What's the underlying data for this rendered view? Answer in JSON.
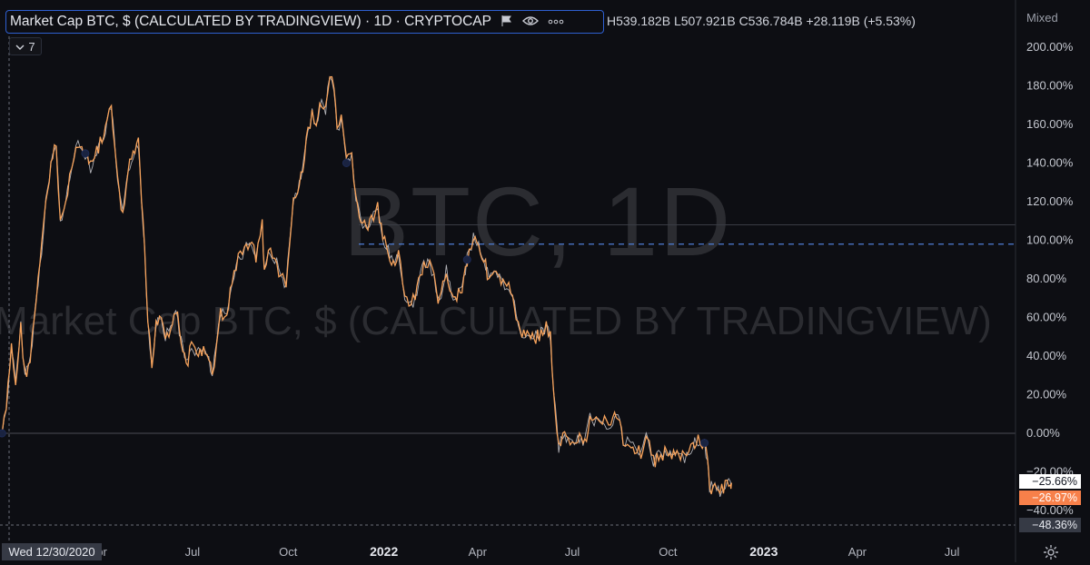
{
  "window": {
    "title": "Market Cap BTC, $ (CALCULATED BY TRADINGVIEW) · 1D · CRYPTOCAP",
    "ohlc": "H539.182B  L507.921B  C536.784B  +28.119B (+5.53%)",
    "indicators_count": "7",
    "scale_mode": "Mixed",
    "crosshair_date": "Wed 12/30/2020"
  },
  "watermark": {
    "symbol": "BTC, 1D",
    "name": "Market Cap BTC, $ (CALCULATED BY TRADINGVIEW)"
  },
  "price_tags": {
    "tag_white": "−25.66%",
    "tag_orange": "−26.97%",
    "tag_gray": "−48.36%"
  },
  "colors": {
    "background": "#0d0e13",
    "line": "#f7a35c",
    "white_overlay": "#e8e8ee",
    "dashed_level": "#4f7fd8",
    "focus_border": "#2e5fd0"
  },
  "icons": [
    "chevron-down-icon",
    "flag-icon",
    "eye-icon",
    "more-icon",
    "gear-icon"
  ],
  "chart_data": {
    "type": "line",
    "title": "Market Cap BTC, $ (CALCULATED BY TRADINGVIEW)",
    "xlabel": "",
    "ylabel": "",
    "ylim": [
      -48.36,
      205
    ],
    "y_ticks": [
      -40,
      -20,
      0,
      20,
      40,
      60,
      80,
      100,
      120,
      140,
      160,
      180,
      200
    ],
    "y_tick_labels": [
      "−40.00%",
      "−20.00%",
      "0.00%",
      "20.00%",
      "40.00%",
      "60.00%",
      "80.00%",
      "100.00%",
      "120.00%",
      "140.00%",
      "160.00%",
      "180.00%",
      "200.00%"
    ],
    "x_ticks": [
      {
        "date": "2021-04-01",
        "label": "Apr",
        "bold": false
      },
      {
        "date": "2021-07-01",
        "label": "Jul",
        "bold": false
      },
      {
        "date": "2021-10-01",
        "label": "Oct",
        "bold": false
      },
      {
        "date": "2022-01-01",
        "label": "2022",
        "bold": true
      },
      {
        "date": "2022-04-01",
        "label": "Apr",
        "bold": false
      },
      {
        "date": "2022-07-01",
        "label": "Jul",
        "bold": false
      },
      {
        "date": "2022-10-01",
        "label": "Oct",
        "bold": false
      },
      {
        "date": "2023-01-01",
        "label": "2023",
        "bold": true
      },
      {
        "date": "2023-04-01",
        "label": "Apr",
        "bold": false
      },
      {
        "date": "2023-07-01",
        "label": "Jul",
        "bold": false
      }
    ],
    "x_range": [
      "2020-12-28",
      "2023-08-31"
    ],
    "dashed_level": 98,
    "solid_level": 108,
    "zero_level": 0,
    "series": [
      {
        "color": "#f7a35c",
        "points": [
          [
            "2020-12-30",
            0
          ],
          [
            "2021-01-03",
            12
          ],
          [
            "2021-01-08",
            45
          ],
          [
            "2021-01-12",
            25
          ],
          [
            "2021-01-17",
            55
          ],
          [
            "2021-01-21",
            30
          ],
          [
            "2021-01-26",
            38
          ],
          [
            "2021-02-01",
            70
          ],
          [
            "2021-02-06",
            95
          ],
          [
            "2021-02-10",
            120
          ],
          [
            "2021-02-15",
            138
          ],
          [
            "2021-02-20",
            150
          ],
          [
            "2021-02-24",
            110
          ],
          [
            "2021-03-01",
            118
          ],
          [
            "2021-03-07",
            140
          ],
          [
            "2021-03-11",
            150
          ],
          [
            "2021-03-15",
            147
          ],
          [
            "2021-03-20",
            145
          ],
          [
            "2021-03-25",
            138
          ],
          [
            "2021-03-31",
            146
          ],
          [
            "2021-04-05",
            152
          ],
          [
            "2021-04-10",
            160
          ],
          [
            "2021-04-14",
            170
          ],
          [
            "2021-04-17",
            150
          ],
          [
            "2021-04-20",
            130
          ],
          [
            "2021-04-25",
            112
          ],
          [
            "2021-04-30",
            135
          ],
          [
            "2021-05-05",
            145
          ],
          [
            "2021-05-10",
            150
          ],
          [
            "2021-05-13",
            118
          ],
          [
            "2021-05-16",
            96
          ],
          [
            "2021-05-19",
            58
          ],
          [
            "2021-05-23",
            35
          ],
          [
            "2021-05-27",
            58
          ],
          [
            "2021-06-01",
            62
          ],
          [
            "2021-06-05",
            50
          ],
          [
            "2021-06-10",
            55
          ],
          [
            "2021-06-15",
            65
          ],
          [
            "2021-06-20",
            48
          ],
          [
            "2021-06-25",
            35
          ],
          [
            "2021-06-30",
            45
          ],
          [
            "2021-07-05",
            42
          ],
          [
            "2021-07-10",
            43
          ],
          [
            "2021-07-15",
            40
          ],
          [
            "2021-07-20",
            30
          ],
          [
            "2021-07-24",
            45
          ],
          [
            "2021-07-28",
            62
          ],
          [
            "2021-08-03",
            60
          ],
          [
            "2021-08-08",
            80
          ],
          [
            "2021-08-14",
            90
          ],
          [
            "2021-08-20",
            95
          ],
          [
            "2021-08-25",
            100
          ],
          [
            "2021-08-31",
            92
          ],
          [
            "2021-09-06",
            108
          ],
          [
            "2021-09-08",
            85
          ],
          [
            "2021-09-14",
            95
          ],
          [
            "2021-09-20",
            88
          ],
          [
            "2021-09-24",
            80
          ],
          [
            "2021-09-29",
            78
          ],
          [
            "2021-10-02",
            95
          ],
          [
            "2021-10-06",
            120
          ],
          [
            "2021-10-10",
            125
          ],
          [
            "2021-10-15",
            135
          ],
          [
            "2021-10-20",
            158
          ],
          [
            "2021-10-24",
            165
          ],
          [
            "2021-10-28",
            162
          ],
          [
            "2021-11-02",
            170
          ],
          [
            "2021-11-06",
            168
          ],
          [
            "2021-11-10",
            186
          ],
          [
            "2021-11-14",
            176
          ],
          [
            "2021-11-17",
            158
          ],
          [
            "2021-11-21",
            162
          ],
          [
            "2021-11-26",
            140
          ],
          [
            "2021-12-01",
            145
          ],
          [
            "2021-12-05",
            122
          ],
          [
            "2021-12-10",
            110
          ],
          [
            "2021-12-15",
            106
          ],
          [
            "2021-12-20",
            110
          ],
          [
            "2021-12-26",
            116
          ],
          [
            "2021-12-31",
            100
          ],
          [
            "2022-01-05",
            95
          ],
          [
            "2022-01-10",
            88
          ],
          [
            "2022-01-15",
            94
          ],
          [
            "2022-01-21",
            70
          ],
          [
            "2022-01-25",
            65
          ],
          [
            "2022-01-31",
            70
          ],
          [
            "2022-02-05",
            83
          ],
          [
            "2022-02-10",
            88
          ],
          [
            "2022-02-16",
            85
          ],
          [
            "2022-02-22",
            68
          ],
          [
            "2022-02-25",
            70
          ],
          [
            "2022-03-02",
            86
          ],
          [
            "2022-03-07",
            70
          ],
          [
            "2022-03-12",
            72
          ],
          [
            "2022-03-17",
            75
          ],
          [
            "2022-03-22",
            90
          ],
          [
            "2022-03-28",
            102
          ],
          [
            "2022-04-02",
            98
          ],
          [
            "2022-04-07",
            90
          ],
          [
            "2022-04-12",
            80
          ],
          [
            "2022-04-17",
            82
          ],
          [
            "2022-04-22",
            80
          ],
          [
            "2022-04-27",
            75
          ],
          [
            "2022-05-03",
            75
          ],
          [
            "2022-05-08",
            62
          ],
          [
            "2022-05-12",
            50
          ],
          [
            "2022-05-17",
            52
          ],
          [
            "2022-05-22",
            52
          ],
          [
            "2022-05-27",
            50
          ],
          [
            "2022-06-01",
            52
          ],
          [
            "2022-06-06",
            55
          ],
          [
            "2022-06-10",
            50
          ],
          [
            "2022-06-13",
            22
          ],
          [
            "2022-06-18",
            -8
          ],
          [
            "2022-06-22",
            -2
          ],
          [
            "2022-06-27",
            -2
          ],
          [
            "2022-07-03",
            -8
          ],
          [
            "2022-07-08",
            -2
          ],
          [
            "2022-07-13",
            -5
          ],
          [
            "2022-07-18",
            8
          ],
          [
            "2022-07-24",
            6
          ],
          [
            "2022-07-28",
            8
          ],
          [
            "2022-08-03",
            5
          ],
          [
            "2022-08-09",
            6
          ],
          [
            "2022-08-14",
            10
          ],
          [
            "2022-08-19",
            -5
          ],
          [
            "2022-08-25",
            -4
          ],
          [
            "2022-08-30",
            -8
          ],
          [
            "2022-09-05",
            -10
          ],
          [
            "2022-09-10",
            -2
          ],
          [
            "2022-09-13",
            -4
          ],
          [
            "2022-09-17",
            -15
          ],
          [
            "2022-09-22",
            -12
          ],
          [
            "2022-09-28",
            -10
          ],
          [
            "2022-10-03",
            -12
          ],
          [
            "2022-10-08",
            -10
          ],
          [
            "2022-10-13",
            -13
          ],
          [
            "2022-10-19",
            -12
          ],
          [
            "2022-10-25",
            -5
          ],
          [
            "2022-10-30",
            -4
          ],
          [
            "2022-11-05",
            -5
          ],
          [
            "2022-11-08",
            -15
          ],
          [
            "2022-11-10",
            -28
          ],
          [
            "2022-11-15",
            -28
          ],
          [
            "2022-11-20",
            -30
          ],
          [
            "2022-11-25",
            -28
          ],
          [
            "2022-11-30",
            -25
          ],
          [
            "2022-12-01",
            -25.66
          ]
        ]
      }
    ]
  }
}
